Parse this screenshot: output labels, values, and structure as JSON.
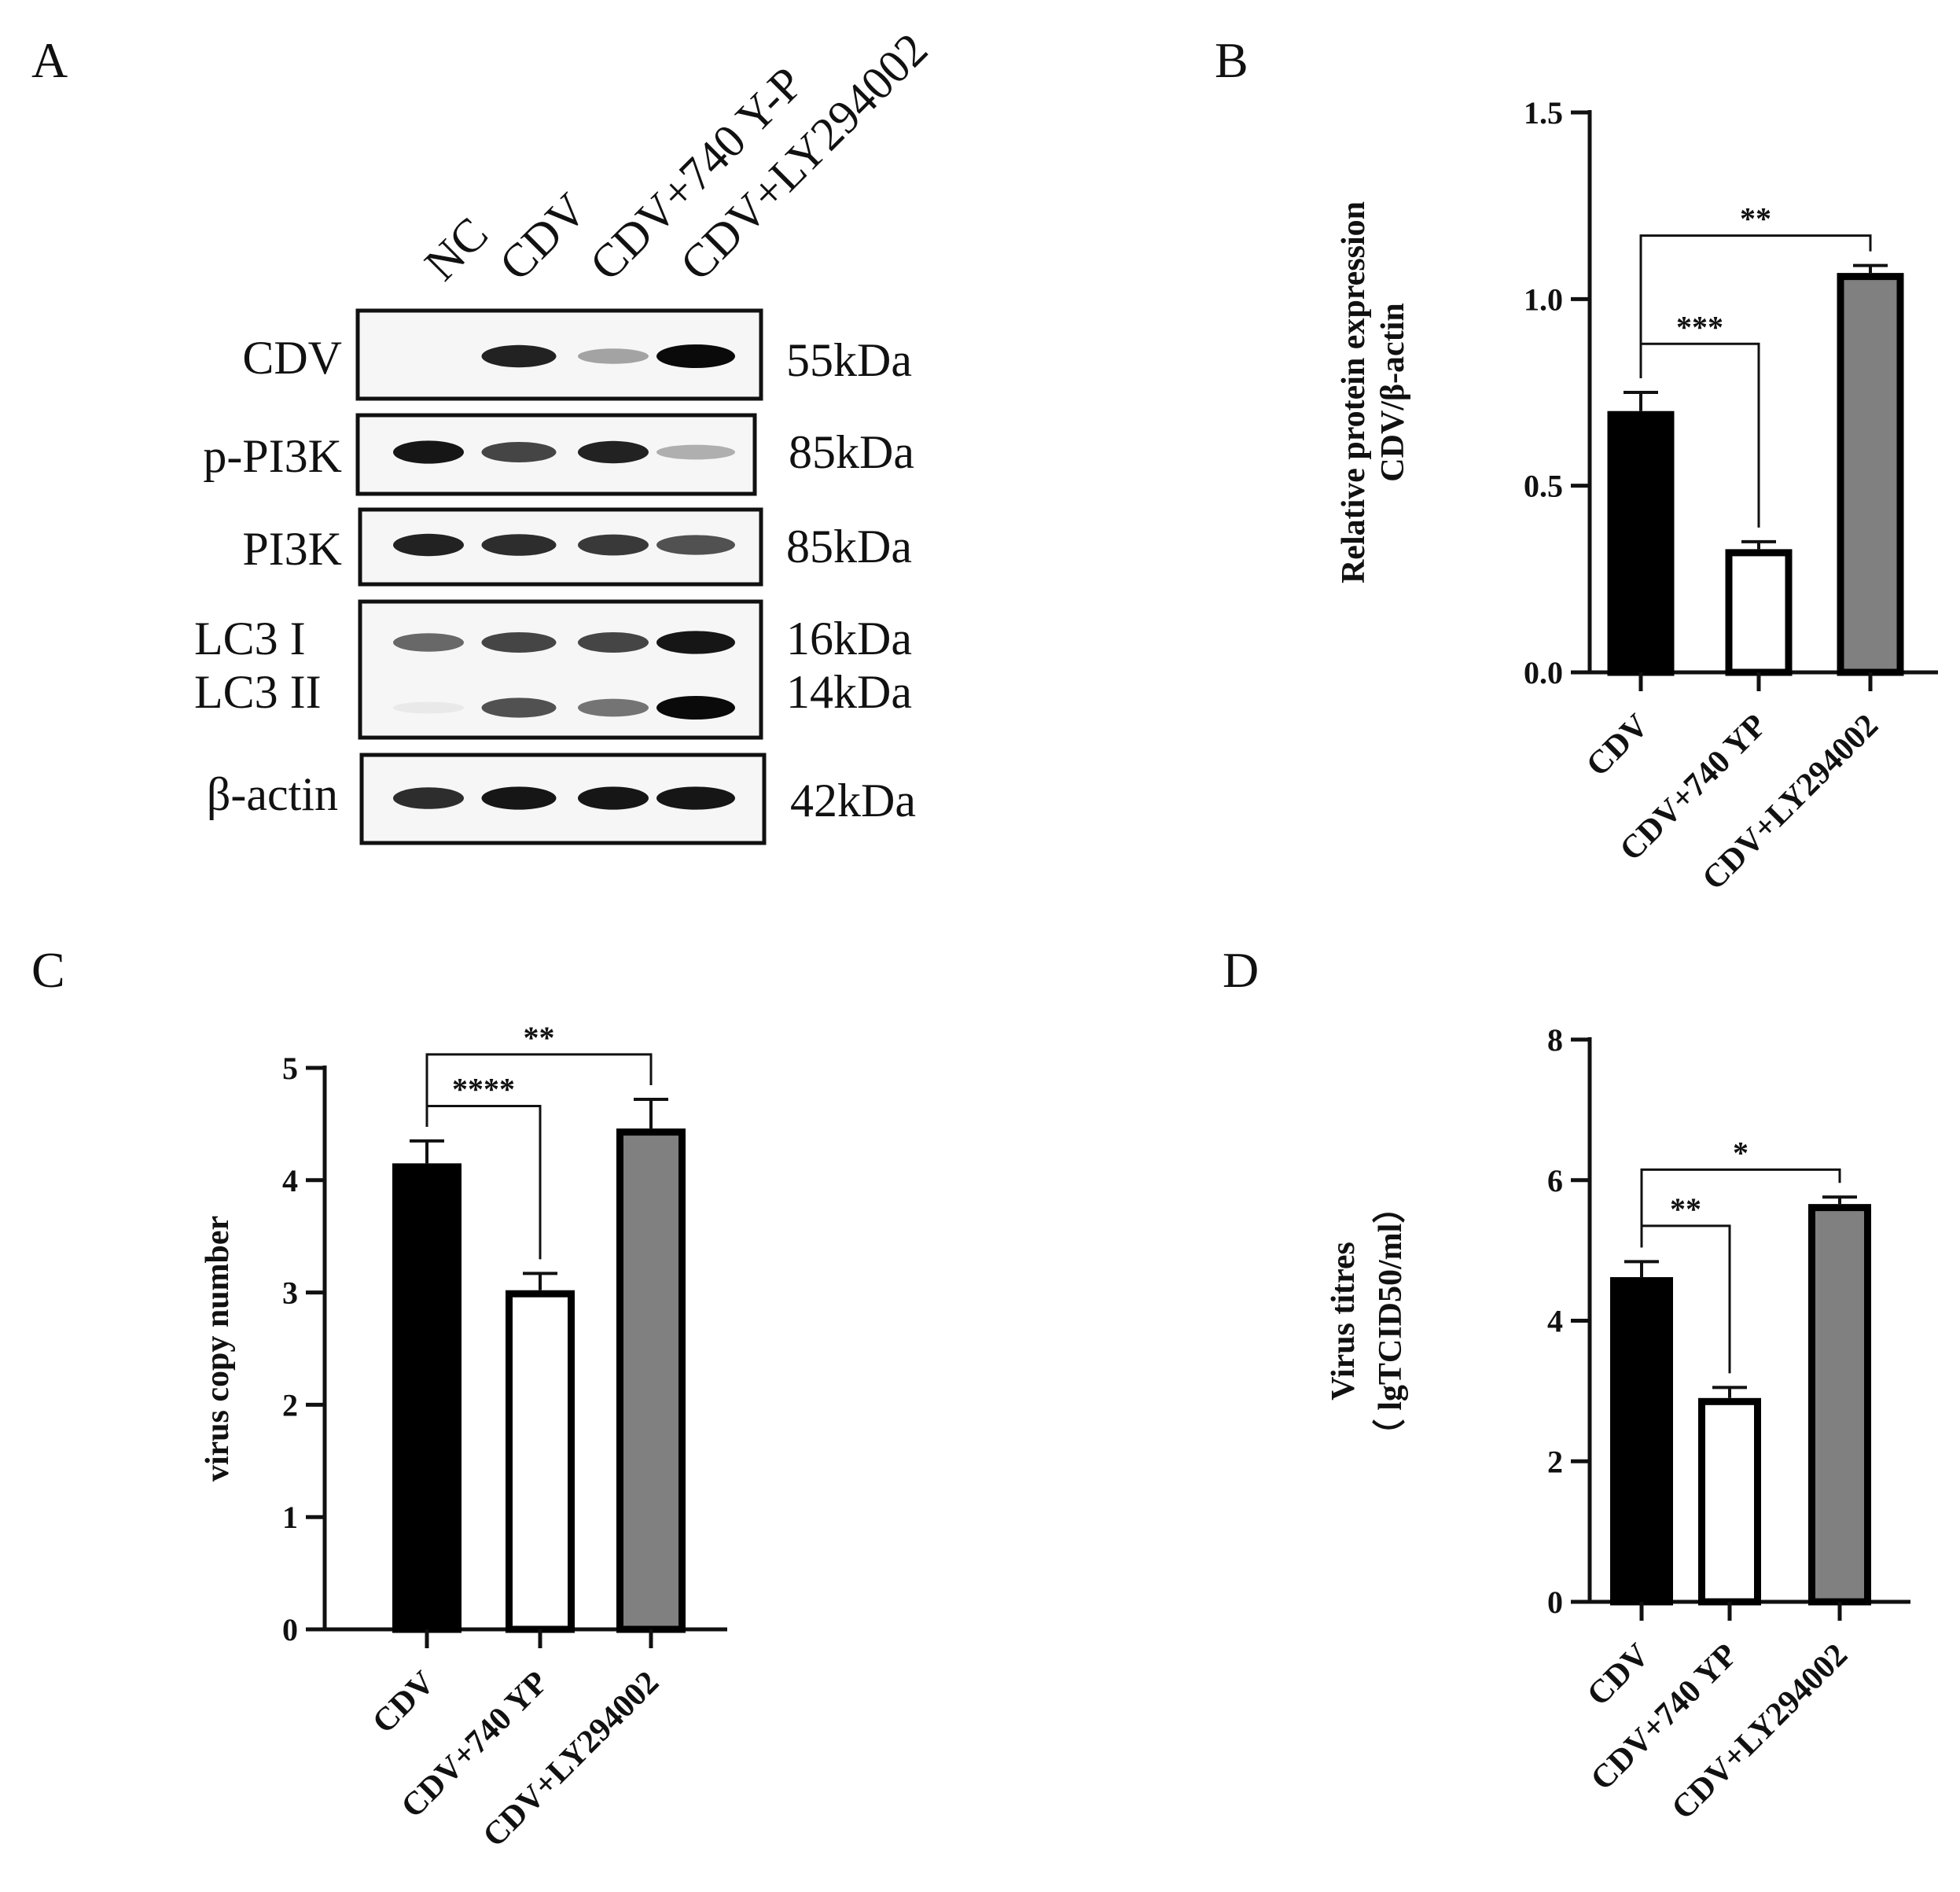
{
  "panels": [
    {
      "id": "A",
      "letter": "A"
    },
    {
      "id": "B",
      "letter": "B"
    },
    {
      "id": "C",
      "letter": "C"
    },
    {
      "id": "D",
      "letter": "D"
    }
  ],
  "western_blot": {
    "lanes": [
      "NC",
      "CDV",
      "CDV+740 Y-P",
      "CDV+LY294002"
    ],
    "rows": [
      {
        "protein": "CDV",
        "kda": "55kDa",
        "intensity": [
          0.0,
          0.9,
          0.35,
          1.0
        ]
      },
      {
        "protein": "p-PI3K",
        "kda": "85kDa",
        "intensity": [
          0.95,
          0.75,
          0.9,
          0.3
        ]
      },
      {
        "protein": "PI3K",
        "kda": "85kDa",
        "intensity": [
          0.9,
          0.85,
          0.8,
          0.7
        ]
      },
      {
        "protein": "LC3 I",
        "kda": "16kDa",
        "intensity": [
          0.6,
          0.75,
          0.75,
          0.95
        ]
      },
      {
        "protein": "LC3 II",
        "kda": "14kDa",
        "intensity": [
          0.05,
          0.7,
          0.55,
          1.0
        ]
      },
      {
        "protein": "β-actin",
        "kda": "42kDa",
        "intensity": [
          0.85,
          0.95,
          0.95,
          0.95
        ]
      }
    ]
  },
  "chart_data": [
    {
      "panel": "B",
      "type": "bar",
      "categories": [
        "CDV",
        "CDV+740 YP",
        "CDV+LY294002"
      ],
      "values": [
        0.7,
        0.33,
        1.07
      ],
      "errors": [
        0.05,
        0.02,
        0.02
      ],
      "fill_colors": [
        "#000000",
        "#ffffff",
        "#808080"
      ],
      "ylabel": [
        "Relative protein expression",
        "CDV/β-actin"
      ],
      "ylim": [
        0,
        1.5
      ],
      "yticks": [
        0.0,
        0.5,
        1.0,
        1.5
      ],
      "ytick_labels": [
        "0.0",
        "0.5",
        "1.0",
        "1.5"
      ],
      "significance": [
        {
          "from": 0,
          "to": 1,
          "label": "***",
          "level": 0.88
        },
        {
          "from": 0,
          "to": 2,
          "label": "**",
          "level": 1.17
        }
      ]
    },
    {
      "panel": "C",
      "type": "bar",
      "categories": [
        "CDV",
        "CDV+740 YP",
        "CDV+LY294002"
      ],
      "values": [
        4.15,
        3.02,
        4.46
      ],
      "errors": [
        0.2,
        0.15,
        0.26
      ],
      "fill_colors": [
        "#000000",
        "#ffffff",
        "#808080"
      ],
      "ylabel": [
        "virus copy number"
      ],
      "ylim": [
        0,
        5
      ],
      "yticks": [
        0,
        1,
        2,
        3,
        4,
        5
      ],
      "ytick_labels": [
        "0",
        "1",
        "2",
        "3",
        "4",
        "5"
      ],
      "significance": [
        {
          "from": 0,
          "to": 1,
          "label": "****",
          "level": 4.66
        },
        {
          "from": 0,
          "to": 2,
          "label": "**",
          "level": 5.12
        }
      ]
    },
    {
      "panel": "D",
      "type": "bar",
      "categories": [
        "CDV",
        "CDV+740 YP",
        "CDV+LY294002"
      ],
      "values": [
        4.62,
        2.9,
        5.66
      ],
      "errors": [
        0.22,
        0.15,
        0.1
      ],
      "fill_colors": [
        "#000000",
        "#ffffff",
        "#808080"
      ],
      "ylabel": [
        "Virus titres",
        "（ lgTCID50/ml）"
      ],
      "ylim": [
        0,
        8
      ],
      "yticks": [
        0,
        2,
        4,
        6,
        8
      ],
      "ytick_labels": [
        "0",
        "2",
        "4",
        "6",
        "8"
      ],
      "significance": [
        {
          "from": 0,
          "to": 1,
          "label": "**",
          "level": 5.35
        },
        {
          "from": 0,
          "to": 2,
          "label": "*",
          "level": 6.15
        }
      ]
    }
  ]
}
